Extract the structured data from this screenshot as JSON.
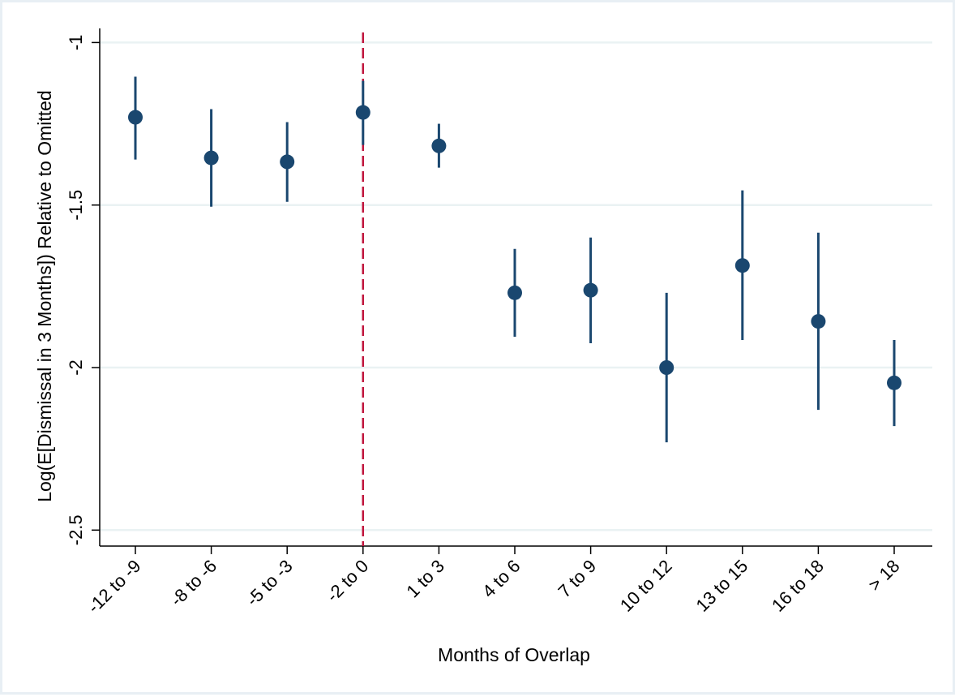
{
  "chart_data": {
    "type": "scatter",
    "xlabel": "Months of Overlap",
    "ylabel": "Log(E[Dismissal in 3 Months]) Relative to Omitted",
    "categories": [
      "-12 to -9",
      "-8 to -6",
      "-5 to -3",
      "-2 to 0",
      "1 to 3",
      "4 to 6",
      "7 to 9",
      "10 to 12",
      "13 to 15",
      "16 to 18",
      "> 18"
    ],
    "series": [
      {
        "values": [
          -1.23,
          -1.355,
          -1.367,
          -1.215,
          -1.318,
          -1.77,
          -1.762,
          -2.0,
          -1.686,
          -1.858,
          -2.047
        ],
        "ci_low": [
          -1.36,
          -1.505,
          -1.49,
          -1.315,
          -1.385,
          -1.905,
          -1.925,
          -2.23,
          -1.915,
          -2.13,
          -2.18
        ],
        "ci_high": [
          -1.105,
          -1.205,
          -1.245,
          -1.118,
          -1.25,
          -1.635,
          -1.6,
          -1.77,
          -1.455,
          -1.585,
          -1.915
        ]
      }
    ],
    "y_ticks": [
      "-1",
      "-1.5",
      "-2",
      "-2.5"
    ],
    "ylim": [
      -2.55,
      -0.97
    ],
    "reference_line": {
      "category": "-2 to 0",
      "style": "dashed"
    },
    "grid": true,
    "colors": {
      "marker": "#1a476f",
      "reference": "#c0143c",
      "grid": "#eaf2f3"
    }
  }
}
